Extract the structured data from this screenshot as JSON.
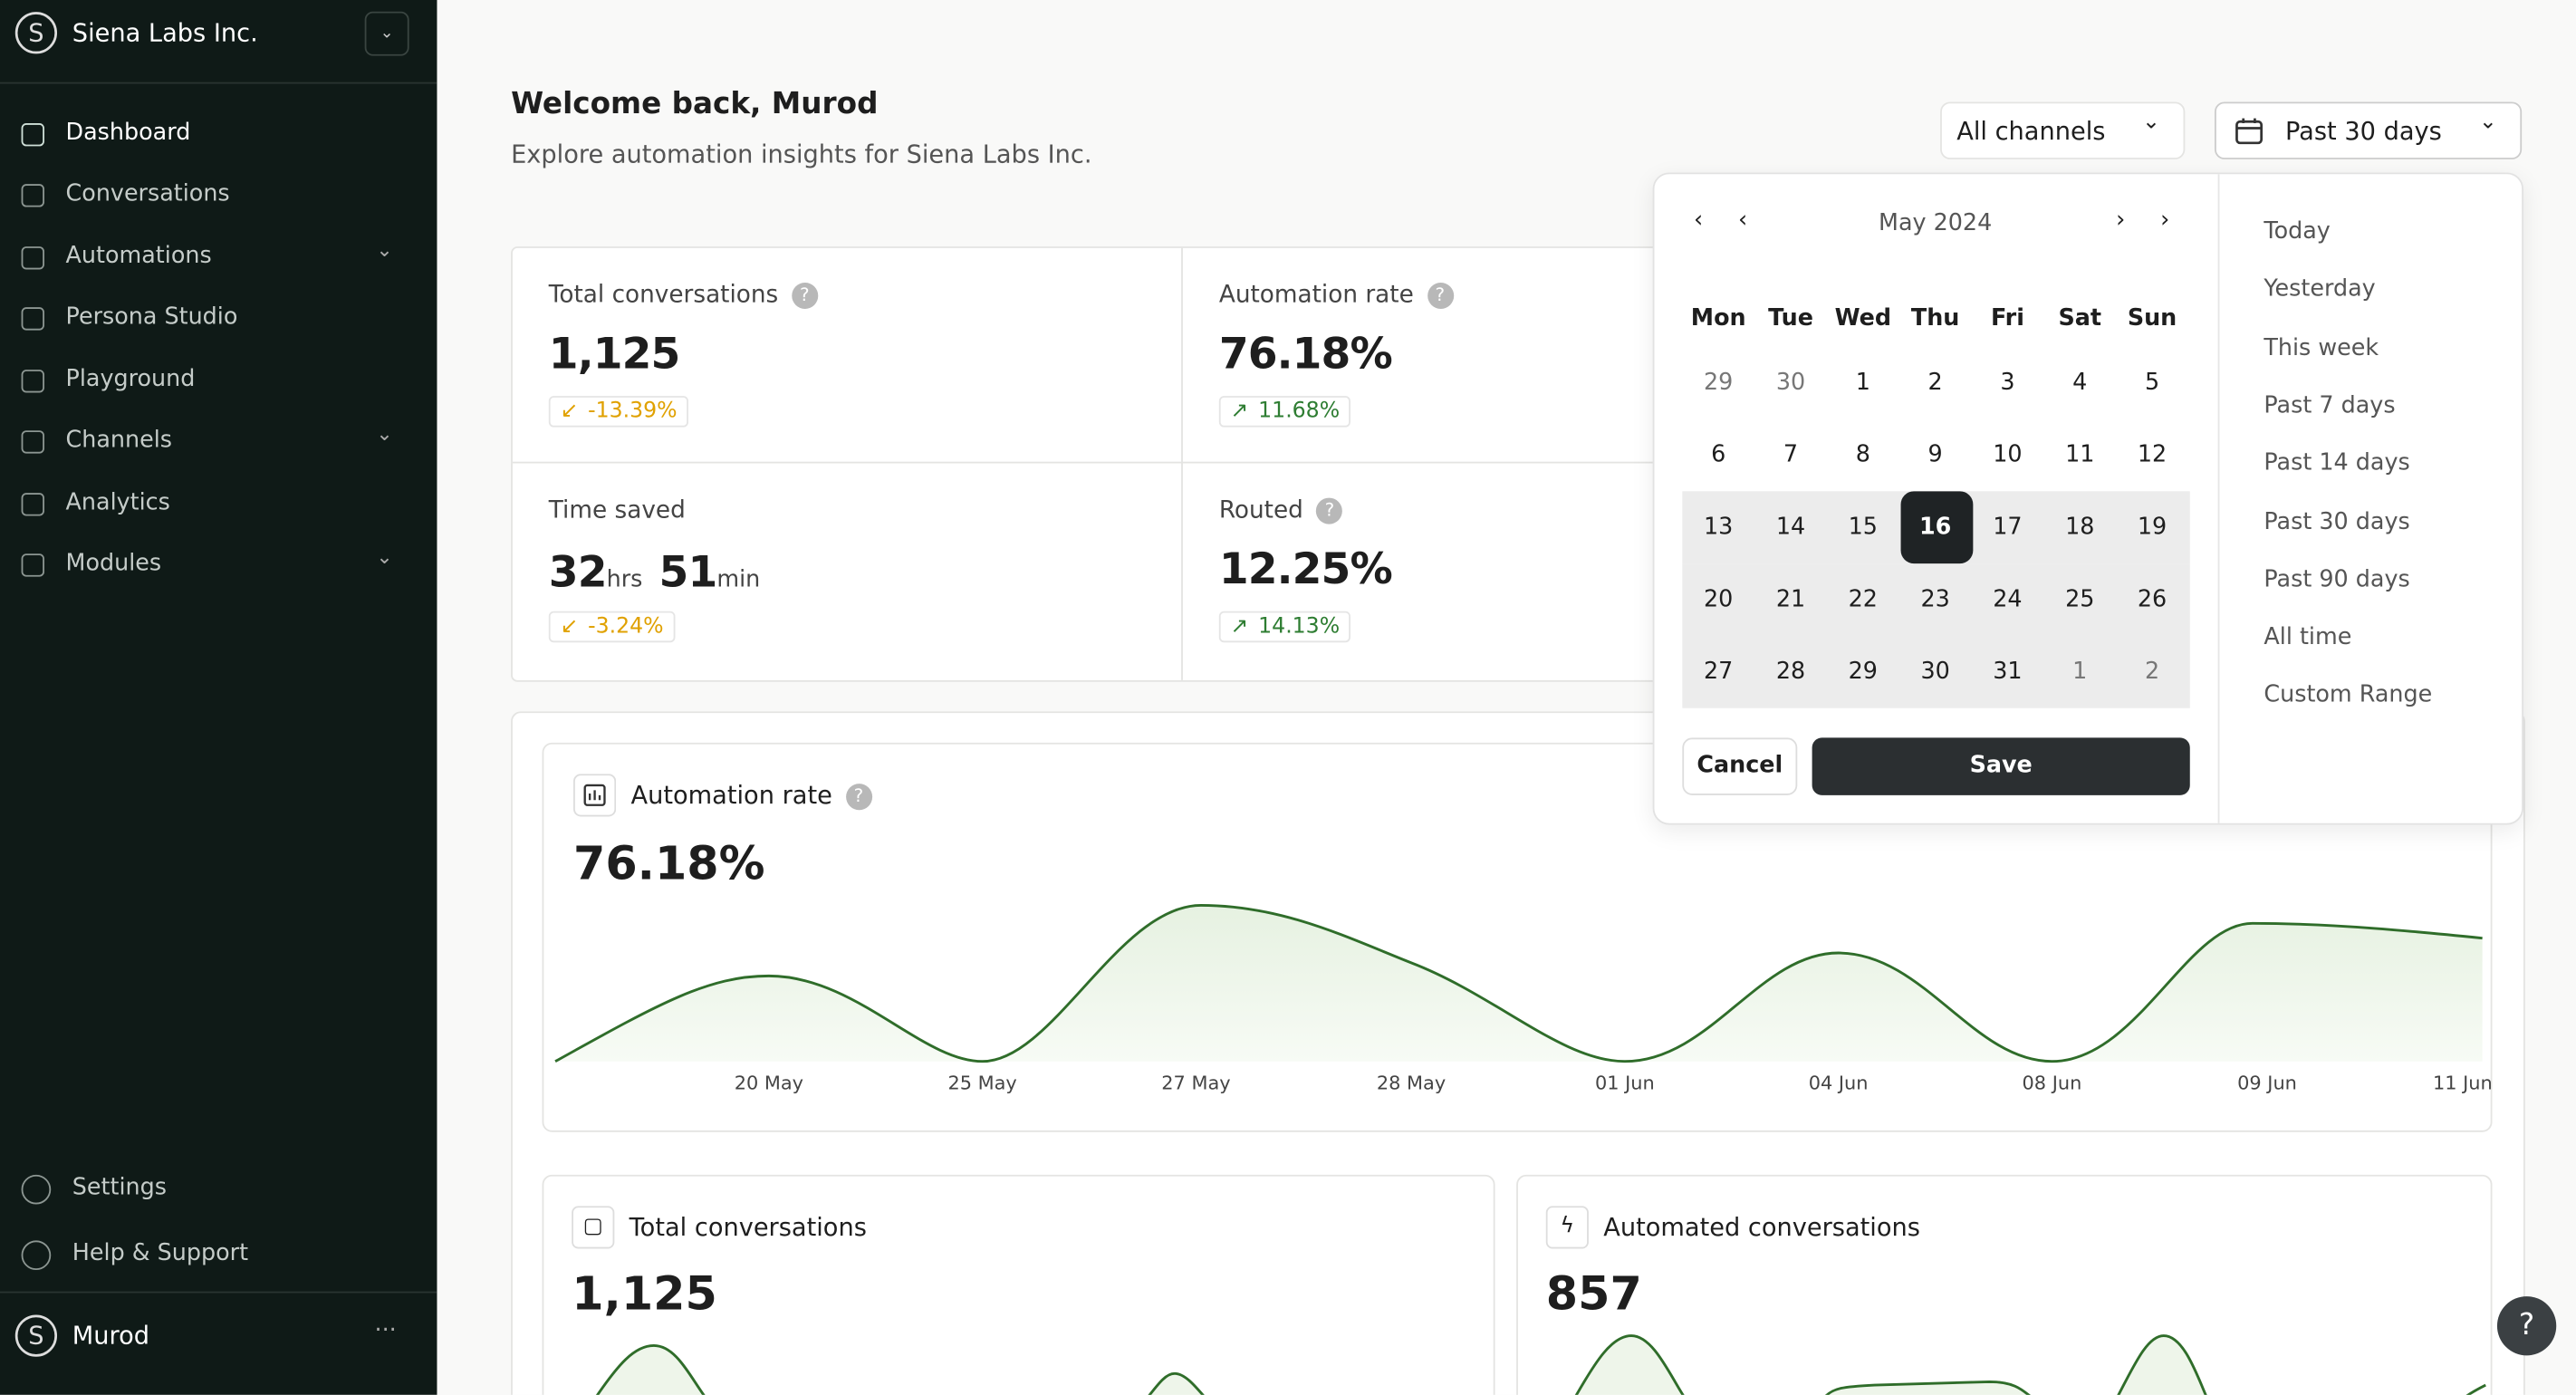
{
  "sidebar": {
    "org": "Siena Labs Inc.",
    "nav": [
      "Dashboard",
      "Conversations",
      "Automations",
      "Persona Studio",
      "Playground",
      "Channels",
      "Analytics",
      "Modules"
    ],
    "footer": [
      "Settings",
      "Help & Support"
    ],
    "user": "Murod"
  },
  "header": {
    "title": "Welcome back, Murod",
    "subtitle": "Explore automation insights for Siena Labs Inc."
  },
  "filters": {
    "channel": "All channels",
    "period": "Past 30 days"
  },
  "stats": [
    {
      "label": "Total conversations",
      "value": "1,125",
      "change": "-13.39%"
    },
    {
      "label": "Automation rate",
      "value": "76.18%",
      "change": "11.68%"
    },
    {
      "label": "Time saved",
      "hours": "32",
      "hours_unit": "hrs",
      "minutes": "51",
      "minutes_unit": "min",
      "change": "-3.24%"
    },
    {
      "label": "Routed",
      "value": "12.25%",
      "change": "14.13%"
    }
  ],
  "calendar": {
    "month": "May 2024",
    "weekdays": [
      "Mon",
      "Tue",
      "Wed",
      "Thu",
      "Fri",
      "Sat",
      "Sun"
    ],
    "weeks": [
      [
        "29",
        "30",
        "1",
        "2",
        "3",
        "4",
        "5"
      ],
      [
        "6",
        "7",
        "8",
        "9",
        "10",
        "11",
        "12"
      ],
      [
        "13",
        "14",
        "15",
        "16",
        "17",
        "18",
        "19"
      ],
      [
        "20",
        "21",
        "22",
        "23",
        "24",
        "25",
        "26"
      ],
      [
        "27",
        "28",
        "29",
        "30",
        "31",
        "1",
        "2"
      ]
    ],
    "cancel": "Cancel",
    "save": "Save",
    "presets": [
      "Today",
      "Yesterday",
      "This week",
      "Past 7 days",
      "Past 14 days",
      "Past 30 days",
      "Past 90 days",
      "All time",
      "Custom Range"
    ]
  },
  "rate_chart": {
    "title": "Automation rate",
    "value": "76.18%",
    "x": [
      "20 May",
      "25 May",
      "27 May",
      "28 May",
      "01 Jun",
      "04 Jun",
      "08 Jun",
      "09 Jun",
      "11 Jun"
    ]
  },
  "small_charts": [
    {
      "title": "Total conversations",
      "value": "1,125"
    },
    {
      "title": "Automated conversations",
      "value": "857"
    }
  ]
}
